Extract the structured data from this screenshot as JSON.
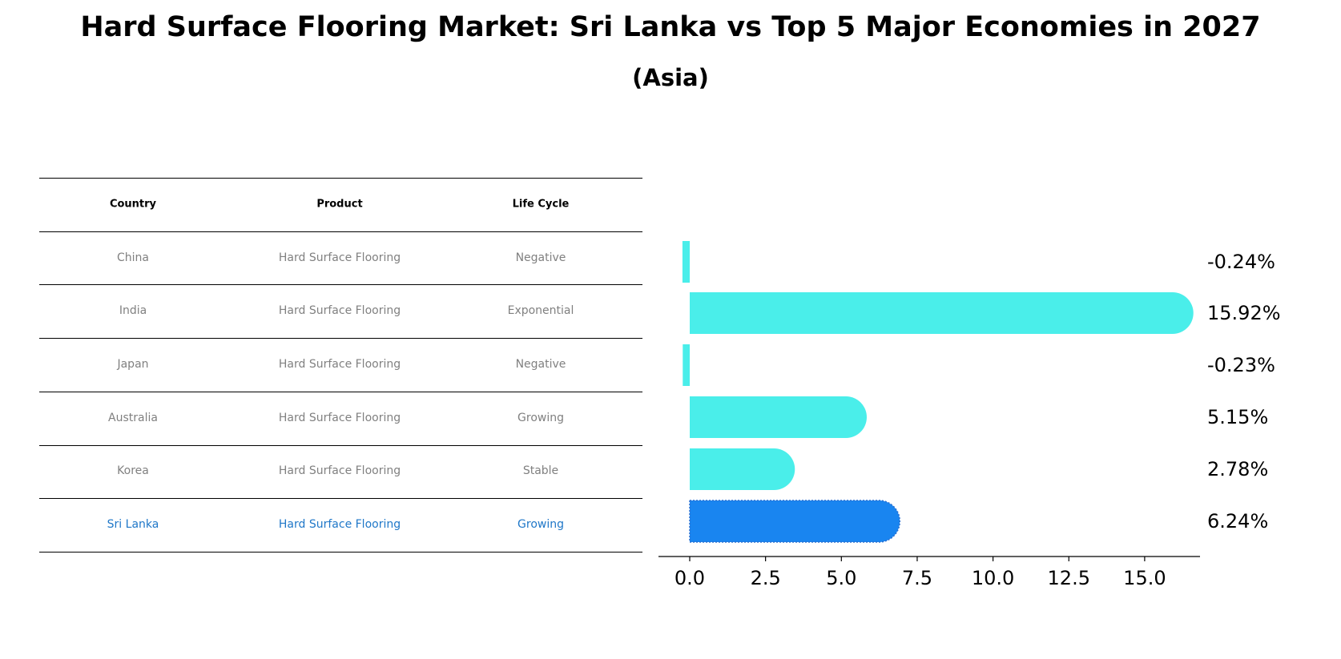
{
  "title": "Hard Surface Flooring Market: Sri Lanka vs Top 5 Major Economies in 2027",
  "subtitle": "(Asia)",
  "table": {
    "headers": [
      "Country",
      "Product",
      "Life Cycle"
    ],
    "rows": [
      {
        "country": "China",
        "product": "Hard Surface Flooring",
        "life_cycle": "Negative",
        "highlight": false
      },
      {
        "country": "India",
        "product": "Hard Surface Flooring",
        "life_cycle": "Exponential",
        "highlight": false
      },
      {
        "country": "Japan",
        "product": "Hard Surface Flooring",
        "life_cycle": "Negative",
        "highlight": false
      },
      {
        "country": "Australia",
        "product": "Hard Surface Flooring",
        "life_cycle": "Growing",
        "highlight": false
      },
      {
        "country": "Korea",
        "product": "Hard Surface Flooring",
        "life_cycle": "Stable",
        "highlight": false
      },
      {
        "country": "Sri Lanka",
        "product": "Hard Surface Flooring",
        "life_cycle": "Growing",
        "highlight": true
      }
    ]
  },
  "colors": {
    "bar": "#4aeeea",
    "highlight_bar": "#1985f0",
    "highlight_text": "#1f77c8",
    "table_text": "#808080"
  },
  "chart_data": {
    "type": "bar",
    "orientation": "horizontal",
    "categories": [
      "China",
      "India",
      "Japan",
      "Australia",
      "Korea",
      "Sri Lanka"
    ],
    "values": [
      -0.24,
      15.92,
      -0.23,
      5.15,
      2.78,
      6.24
    ],
    "value_labels": [
      "-0.24%",
      "15.92%",
      "-0.23%",
      "5.15%",
      "2.78%",
      "6.24%"
    ],
    "highlight": "Sri Lanka",
    "xlim": [
      -1,
      16.8
    ],
    "xticks": [
      0.0,
      2.5,
      5.0,
      7.5,
      10.0,
      12.5,
      15.0
    ],
    "xtick_labels": [
      "0.0",
      "2.5",
      "5.0",
      "7.5",
      "10.0",
      "12.5",
      "15.0"
    ],
    "xlabel": "",
    "ylabel": "",
    "grid": false
  }
}
